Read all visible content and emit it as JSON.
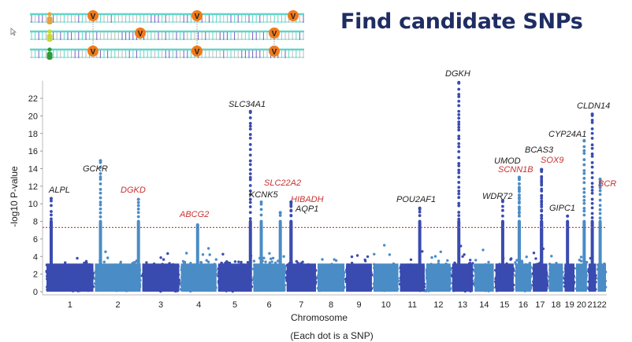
{
  "title": "Find candidate SNPs",
  "caption": "(Each dot is a SNP)",
  "illustration": {
    "variant_marker": "V",
    "people_colors": [
      "#e8a23a",
      "#c8d83a",
      "#2f9a3a"
    ]
  },
  "chart_data": {
    "type": "scatter",
    "subtype": "manhattan",
    "xlabel": "Chromosome",
    "ylabel": "-log10 P-value",
    "ylim": [
      0,
      24
    ],
    "yticks": [
      "0",
      "2",
      "4",
      "6",
      "8",
      "10",
      "12",
      "14",
      "16",
      "18",
      "20",
      "22"
    ],
    "xticks": [
      "1",
      "2",
      "3",
      "4",
      "5",
      "6",
      "7",
      "8",
      "9",
      "10",
      "11",
      "12",
      "13",
      "14",
      "15",
      "16",
      "17",
      "18",
      "19",
      "20",
      "21",
      "22"
    ],
    "significance_threshold": 7.3,
    "threshold_color": "#d94040",
    "series_colors": {
      "odd": "#3a4bb0",
      "even": "#4a8cc6"
    },
    "peaks": [
      {
        "gene": "ALPL",
        "chromosome": 1,
        "value": 10.6,
        "color": "#222222"
      },
      {
        "gene": "GCKR",
        "chromosome": 2,
        "value": 14.9,
        "color": "#222222"
      },
      {
        "gene": "DGKD",
        "chromosome": 2,
        "value": 10.5,
        "color": "#c83232"
      },
      {
        "gene": "ABCG2",
        "chromosome": 4,
        "value": 7.6,
        "color": "#c83232"
      },
      {
        "gene": "SLC34A1",
        "chromosome": 5,
        "value": 20.5,
        "color": "#222222"
      },
      {
        "gene": "KCNK5",
        "chromosome": 6,
        "value": 10.2,
        "color": "#222222"
      },
      {
        "gene": "SLC22A2",
        "chromosome": 6,
        "value": 9.0,
        "color": "#c83232"
      },
      {
        "gene": "HIBADH",
        "chromosome": 7,
        "value": 10.2,
        "color": "#c83232"
      },
      {
        "gene": "AQP1",
        "chromosome": 7,
        "value": 10.2,
        "color": "#222222"
      },
      {
        "gene": "POU2AF1",
        "chromosome": 11,
        "value": 9.5,
        "color": "#222222"
      },
      {
        "gene": "DGKH",
        "chromosome": 13,
        "value": 23.8,
        "color": "#222222"
      },
      {
        "gene": "WDR72",
        "chromosome": 15,
        "value": 10.4,
        "color": "#222222"
      },
      {
        "gene": "UMOD",
        "chromosome": 16,
        "value": 13.0,
        "color": "#222222"
      },
      {
        "gene": "SCNN1B",
        "chromosome": 16,
        "value": 13.0,
        "color": "#c83232"
      },
      {
        "gene": "BCAS3",
        "chromosome": 17,
        "value": 13.9,
        "color": "#222222"
      },
      {
        "gene": "SOX9",
        "chromosome": 17,
        "value": 13.9,
        "color": "#c83232"
      },
      {
        "gene": "GIPC1",
        "chromosome": 19,
        "value": 8.6,
        "color": "#222222"
      },
      {
        "gene": "CYP24A1",
        "chromosome": 20,
        "value": 17.2,
        "color": "#222222"
      },
      {
        "gene": "CLDN14",
        "chromosome": 21,
        "value": 20.2,
        "color": "#222222"
      },
      {
        "gene": "BCR",
        "chromosome": 22,
        "value": 12.8,
        "color": "#c83232"
      }
    ]
  }
}
